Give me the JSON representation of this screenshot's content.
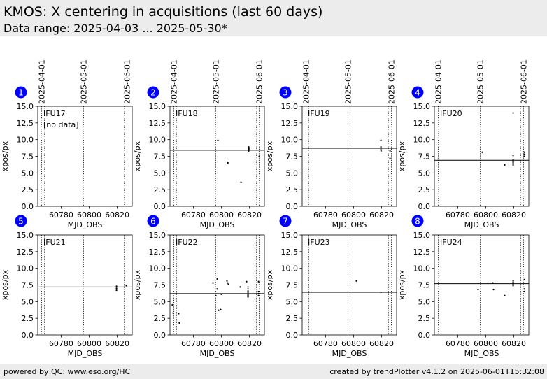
{
  "header": {
    "title": "KMOS: X centering in acquisitions (last 60 days)",
    "subtitle": "Data range: 2025-04-03 ... 2025-05-30*"
  },
  "footer": {
    "left": "powered by QC: www.eso.org/HC",
    "right": "created by trendPlotter v4.1.2 on 2025-06-01T15:32:08"
  },
  "colors": {
    "badge": "#0000ff",
    "header_bg": "#ececec"
  },
  "chart_data": {
    "type": "scatter",
    "xlabel": "MJD_OBS",
    "ylabel": "xpos/px",
    "xlim": [
      60763.3,
      60830.7
    ],
    "ylim": [
      0.0,
      15.0
    ],
    "xticks": [
      60780,
      60800,
      60820
    ],
    "yticks": [
      "0.0",
      "2.5",
      "5.0",
      "7.5",
      "10.0",
      "12.5",
      "15.0"
    ],
    "date_markers": [
      {
        "label": "2025-04-01",
        "x": 60766
      },
      {
        "label": "2025-05-01",
        "x": 60796
      },
      {
        "label": "2025-06-01",
        "x": 60827
      }
    ],
    "range_edges": [
      60768,
      60825
    ],
    "panels": [
      {
        "badge": "1",
        "name": "IFU17",
        "note": "[no data]",
        "ref": null,
        "points": []
      },
      {
        "badge": "2",
        "name": "IFU18",
        "note": "",
        "ref": 8.4,
        "points": [
          [
            60797.5,
            9.9
          ],
          [
            60804.5,
            6.6
          ],
          [
            60804.6,
            6.5
          ],
          [
            60814,
            3.6
          ],
          [
            60819.5,
            8.9
          ],
          [
            60819.5,
            8.7
          ],
          [
            60819.5,
            8.5
          ],
          [
            60819.5,
            8.3
          ],
          [
            60819.6,
            8.6
          ],
          [
            60827,
            7.5
          ]
        ]
      },
      {
        "badge": "3",
        "name": "IFU19",
        "note": "",
        "ref": 8.7,
        "points": [
          [
            60819.5,
            9.9
          ],
          [
            60819.5,
            8.9
          ],
          [
            60819.5,
            8.7
          ],
          [
            60819.5,
            8.5
          ],
          [
            60819.6,
            8.3
          ],
          [
            60826,
            8.3
          ],
          [
            60826,
            7.2
          ]
        ]
      },
      {
        "badge": "4",
        "name": "IFU20",
        "note": "",
        "ref": 6.9,
        "points": [
          [
            60797.5,
            8.1
          ],
          [
            60813.5,
            6.2
          ],
          [
            60819.5,
            14.0
          ],
          [
            60819.5,
            7.6
          ],
          [
            60819.5,
            7.0
          ],
          [
            60819.5,
            6.8
          ],
          [
            60819.5,
            6.6
          ],
          [
            60819.5,
            6.4
          ],
          [
            60819.5,
            6.2
          ],
          [
            60827.5,
            8.1
          ],
          [
            60827.5,
            7.8
          ],
          [
            60827.5,
            7.5
          ]
        ]
      },
      {
        "badge": "5",
        "name": "IFU21",
        "note": "",
        "ref": 7.2,
        "points": [
          [
            60819.5,
            7.3
          ],
          [
            60819.5,
            7.0
          ],
          [
            60819.5,
            6.7
          ],
          [
            60826.5,
            7.4
          ]
        ]
      },
      {
        "badge": "6",
        "name": "IFU22",
        "note": "",
        "ref": 6.2,
        "points": [
          [
            60765,
            4.5
          ],
          [
            60765.5,
            3.3
          ],
          [
            60769.5,
            3.2
          ],
          [
            60770,
            1.8
          ],
          [
            60794,
            7.8
          ],
          [
            60796,
            5.9
          ],
          [
            60797,
            8.4
          ],
          [
            60797,
            6.9
          ],
          [
            60798,
            3.7
          ],
          [
            60799.5,
            3.8
          ],
          [
            60800,
            6.1
          ],
          [
            60804,
            8.1
          ],
          [
            60804.5,
            7.8
          ],
          [
            60805,
            7.6
          ],
          [
            60813.5,
            7.2
          ],
          [
            60818,
            8.0
          ],
          [
            60819,
            7.2
          ],
          [
            60819,
            6.9
          ],
          [
            60819,
            6.6
          ],
          [
            60819,
            6.4
          ],
          [
            60819,
            6.2
          ],
          [
            60819,
            6.0
          ],
          [
            60819,
            5.9
          ],
          [
            60819,
            5.8
          ],
          [
            60819,
            5.7
          ],
          [
            60826.5,
            8.0
          ],
          [
            60826.5,
            6.5
          ],
          [
            60826.5,
            6.2
          ],
          [
            60826.5,
            5.9
          ]
        ]
      },
      {
        "badge": "7",
        "name": "IFU23",
        "note": "",
        "ref": 6.4,
        "points": [
          [
            60802,
            8.1
          ],
          [
            60819.5,
            6.4
          ]
        ]
      },
      {
        "badge": "8",
        "name": "IFU24",
        "note": "",
        "ref": 7.7,
        "points": [
          [
            60794.5,
            6.8
          ],
          [
            60805,
            7.8
          ],
          [
            60805.5,
            6.8
          ],
          [
            60813.5,
            5.9
          ],
          [
            60819.5,
            8.1
          ],
          [
            60819.5,
            7.9
          ],
          [
            60819.5,
            7.7
          ],
          [
            60819.5,
            7.6
          ],
          [
            60819.5,
            7.4
          ],
          [
            60827.5,
            8.3
          ],
          [
            60827.5,
            6.9
          ],
          [
            60827.5,
            6.5
          ]
        ]
      }
    ]
  }
}
